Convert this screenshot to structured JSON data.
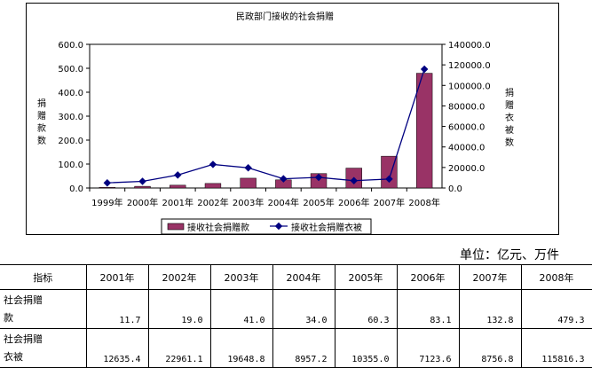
{
  "chart_data": {
    "type": "bar+line",
    "title": "民政部门接收的社会捐赠",
    "categories": [
      "1999年",
      "2000年",
      "2001年",
      "2002年",
      "2003年",
      "2004年",
      "2005年",
      "2006年",
      "2007年",
      "2008年"
    ],
    "series": [
      {
        "name": "接收社会捐赠款",
        "kind": "bar",
        "axis": "left",
        "color": "#993366",
        "values": [
          3.0,
          7.0,
          11.7,
          19.0,
          41.0,
          34.0,
          60.3,
          83.1,
          132.8,
          479.3
        ]
      },
      {
        "name": "接收社会捐赠衣被",
        "kind": "line",
        "axis": "right",
        "color": "#000080",
        "values": [
          5000,
          6500,
          12635.4,
          22961.1,
          19648.8,
          8957.2,
          10355.0,
          7123.6,
          8756.8,
          115816.3
        ]
      }
    ],
    "y_left": {
      "label": "捐赠款数",
      "ticks": [
        "0.0",
        "100.0",
        "200.0",
        "300.0",
        "400.0",
        "500.0",
        "600.0"
      ],
      "range": [
        0,
        600
      ]
    },
    "y_right": {
      "label": "捐赠衣被数",
      "ticks": [
        "0.0",
        "20000.0",
        "40000.0",
        "60000.0",
        "80000.0",
        "100000.0",
        "120000.0",
        "140000.0"
      ],
      "range": [
        0,
        140000
      ]
    },
    "legend_position": "bottom"
  },
  "unit_text": "单位：亿元、万件",
  "table": {
    "header_label": "指标",
    "years": [
      "2001年",
      "2002年",
      "2003年",
      "2004年",
      "2005年",
      "2006年",
      "2007年",
      "2008年"
    ],
    "rows": [
      {
        "label_line1": "社会捐赠",
        "label_line2": "款",
        "values": [
          "11.7",
          "19.0",
          "41.0",
          "34.0",
          "60.3",
          "83.1",
          "132.8",
          "479.3"
        ]
      },
      {
        "label_line1": "社会捐赠",
        "label_line2": "衣被",
        "values": [
          "12635.4",
          "22961.1",
          "19648.8",
          "8957.2",
          "10355.0",
          "7123.6",
          "8756.8",
          "115816.3"
        ]
      }
    ]
  }
}
